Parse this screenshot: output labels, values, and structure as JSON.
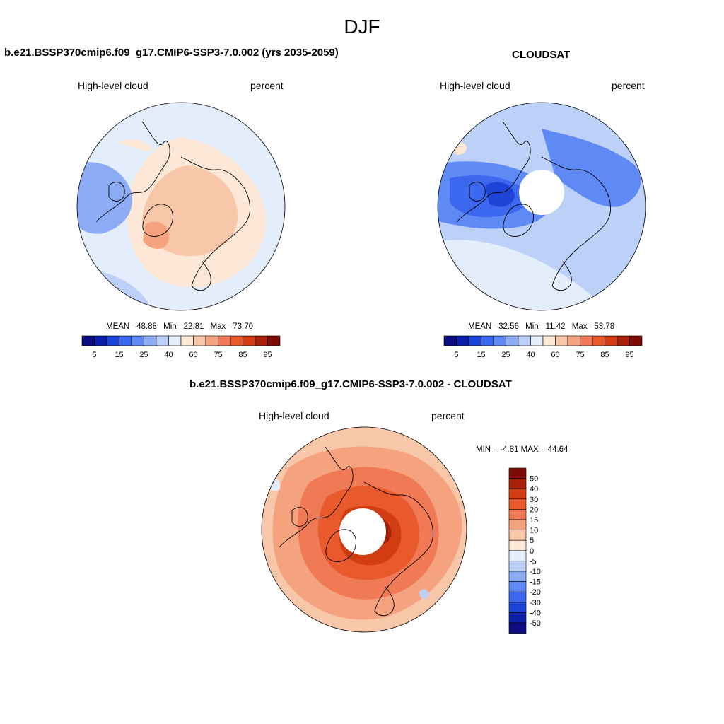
{
  "figure": {
    "season": "DJF"
  },
  "panels": {
    "model": {
      "title": "b.e21.BSSP370cmip6.f09_g17.CMIP6-SSP3-7.0.002 (yrs 2035-2059)",
      "variable": "High-level cloud",
      "units": "percent",
      "stats": {
        "mean_label": "MEAN=",
        "mean": "48.88",
        "min_label": "Min=",
        "min": "22.81",
        "max_label": "Max=",
        "max": "73.70"
      }
    },
    "obs": {
      "title": "CLOUDSAT",
      "variable": "High-level cloud",
      "units": "percent",
      "stats": {
        "mean_label": "MEAN=",
        "mean": "32.56",
        "min_label": "Min=",
        "min": "11.42",
        "max_label": "Max=",
        "max": "53.78"
      }
    },
    "diff": {
      "title": "b.e21.BSSP370cmip6.f09_g17.CMIP6-SSP3-7.0.002 - CLOUDSAT",
      "variable": "High-level cloud",
      "units": "percent",
      "stats": {
        "min_label": "MIN =",
        "min": "-4.81",
        "max_label": "MAX =",
        "max": "44.64"
      }
    }
  },
  "colorbars": {
    "abs": {
      "colors": [
        "#0d0d80",
        "#0b1fa8",
        "#1d44d6",
        "#3c67ef",
        "#5f89f4",
        "#8eacf5",
        "#bcd0f8",
        "#e3edfb",
        "#fde8d7",
        "#f8c6a8",
        "#f5a27e",
        "#f07a55",
        "#e85a2c",
        "#d23c12",
        "#a8220a",
        "#7a0c05"
      ],
      "labels": [
        "5",
        "15",
        "25",
        "40",
        "60",
        "75",
        "85",
        "95"
      ]
    },
    "diff": {
      "colors": [
        "#0d0d80",
        "#0b1fa8",
        "#1d44d6",
        "#3c67ef",
        "#5f89f4",
        "#8eacf5",
        "#bcd0f8",
        "#e3edfb",
        "#fde8d7",
        "#f8c6a8",
        "#f5a27e",
        "#f07a55",
        "#e85a2c",
        "#d23c12",
        "#a8220a",
        "#7a0c05"
      ],
      "labels": [
        "50",
        "40",
        "30",
        "20",
        "15",
        "10",
        "5",
        "0",
        "-5",
        "-10",
        "-15",
        "-20",
        "-30",
        "-40",
        "-50"
      ]
    }
  },
  "map_colors": {
    "model_base": "#fde8d7",
    "obs_base": "#bcd0f8",
    "diff_base": "#f5a27e",
    "pole_hole": "#ffffff",
    "coastline": "#000000"
  }
}
